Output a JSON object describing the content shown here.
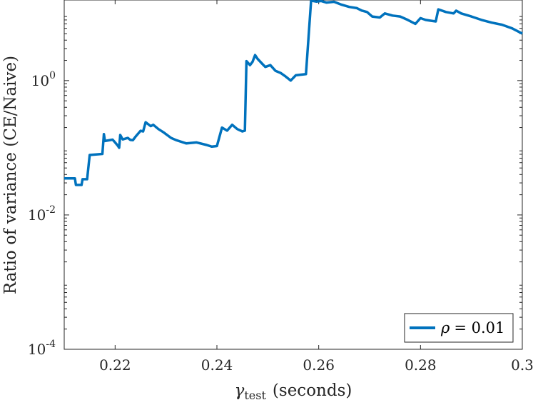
{
  "chart_data": {
    "type": "line",
    "xlabel": "γtest (seconds)",
    "xlabel_parts": {
      "symbol": "γ",
      "subscript": "test",
      "rest": "(seconds)"
    },
    "ylabel": "Ratio of variance (CE/Naive)",
    "xlim": [
      0.21,
      0.3
    ],
    "ylim_log10": [
      -4,
      1.2
    ],
    "y_scale": "log",
    "grid": false,
    "legend_position": "bottom-right",
    "x_ticks": [
      {
        "value": 0.22,
        "label": "0.22"
      },
      {
        "value": 0.24,
        "label": "0.24"
      },
      {
        "value": 0.26,
        "label": "0.26"
      },
      {
        "value": 0.28,
        "label": "0.28"
      },
      {
        "value": 0.3,
        "label": "0.3"
      }
    ],
    "y_ticks": [
      {
        "value": 0.0001,
        "base": "10",
        "exp": "-4"
      },
      {
        "value": 0.01,
        "base": "10",
        "exp": "-2"
      },
      {
        "value": 1,
        "base": "10",
        "exp": "0"
      }
    ],
    "series": [
      {
        "name": "ρ = 0.01",
        "legend_symbol": "ρ",
        "legend_rest": "= 0.01",
        "color": "#0072BD",
        "points": [
          [
            0.21,
            0.035
          ],
          [
            0.2121,
            0.035
          ],
          [
            0.2123,
            0.028
          ],
          [
            0.2134,
            0.028
          ],
          [
            0.2136,
            0.034
          ],
          [
            0.2145,
            0.034
          ],
          [
            0.215,
            0.078
          ],
          [
            0.2175,
            0.081
          ],
          [
            0.2178,
            0.16
          ],
          [
            0.218,
            0.126
          ],
          [
            0.2195,
            0.132
          ],
          [
            0.2198,
            0.125
          ],
          [
            0.2205,
            0.108
          ],
          [
            0.2208,
            0.1
          ],
          [
            0.221,
            0.155
          ],
          [
            0.2215,
            0.133
          ],
          [
            0.2225,
            0.14
          ],
          [
            0.223,
            0.131
          ],
          [
            0.2235,
            0.13
          ],
          [
            0.224,
            0.146
          ],
          [
            0.225,
            0.179
          ],
          [
            0.2255,
            0.175
          ],
          [
            0.226,
            0.24
          ],
          [
            0.227,
            0.21
          ],
          [
            0.2275,
            0.22
          ],
          [
            0.2285,
            0.19
          ],
          [
            0.2295,
            0.17
          ],
          [
            0.231,
            0.14
          ],
          [
            0.232,
            0.13
          ],
          [
            0.234,
            0.116
          ],
          [
            0.236,
            0.12
          ],
          [
            0.238,
            0.11
          ],
          [
            0.239,
            0.104
          ],
          [
            0.24,
            0.106
          ],
          [
            0.241,
            0.2
          ],
          [
            0.2415,
            0.19
          ],
          [
            0.242,
            0.18
          ],
          [
            0.243,
            0.22
          ],
          [
            0.244,
            0.19
          ],
          [
            0.245,
            0.175
          ],
          [
            0.2455,
            0.18
          ],
          [
            0.2458,
            1.95
          ],
          [
            0.2465,
            1.7
          ],
          [
            0.247,
            1.9
          ],
          [
            0.2475,
            2.4
          ],
          [
            0.248,
            2.1
          ],
          [
            0.249,
            1.75
          ],
          [
            0.2495,
            1.6
          ],
          [
            0.2505,
            1.7
          ],
          [
            0.2515,
            1.4
          ],
          [
            0.2525,
            1.3
          ],
          [
            0.2535,
            1.15
          ],
          [
            0.2545,
            1.0
          ],
          [
            0.2555,
            1.2
          ],
          [
            0.2575,
            1.25
          ],
          [
            0.2585,
            15.5
          ],
          [
            0.2595,
            15.0
          ],
          [
            0.2605,
            15.3
          ],
          [
            0.2615,
            14.5
          ],
          [
            0.263,
            14.9
          ],
          [
            0.2645,
            13.5
          ],
          [
            0.266,
            12.5
          ],
          [
            0.2675,
            12.0
          ],
          [
            0.2685,
            11.0
          ],
          [
            0.2695,
            10.5
          ],
          [
            0.2705,
            9.0
          ],
          [
            0.272,
            8.7
          ],
          [
            0.273,
            10.0
          ],
          [
            0.2745,
            9.3
          ],
          [
            0.276,
            9.0
          ],
          [
            0.2775,
            8.0
          ],
          [
            0.279,
            7.0
          ],
          [
            0.28,
            8.5
          ],
          [
            0.281,
            8.0
          ],
          [
            0.282,
            7.8
          ],
          [
            0.283,
            7.6
          ],
          [
            0.2835,
            11.5
          ],
          [
            0.285,
            10.5
          ],
          [
            0.2865,
            10.0
          ],
          [
            0.287,
            11.0
          ],
          [
            0.288,
            10.0
          ],
          [
            0.29,
            9.0
          ],
          [
            0.292,
            8.0
          ],
          [
            0.294,
            7.3
          ],
          [
            0.296,
            6.8
          ],
          [
            0.298,
            6.0
          ],
          [
            0.3,
            5.0
          ]
        ]
      }
    ]
  }
}
